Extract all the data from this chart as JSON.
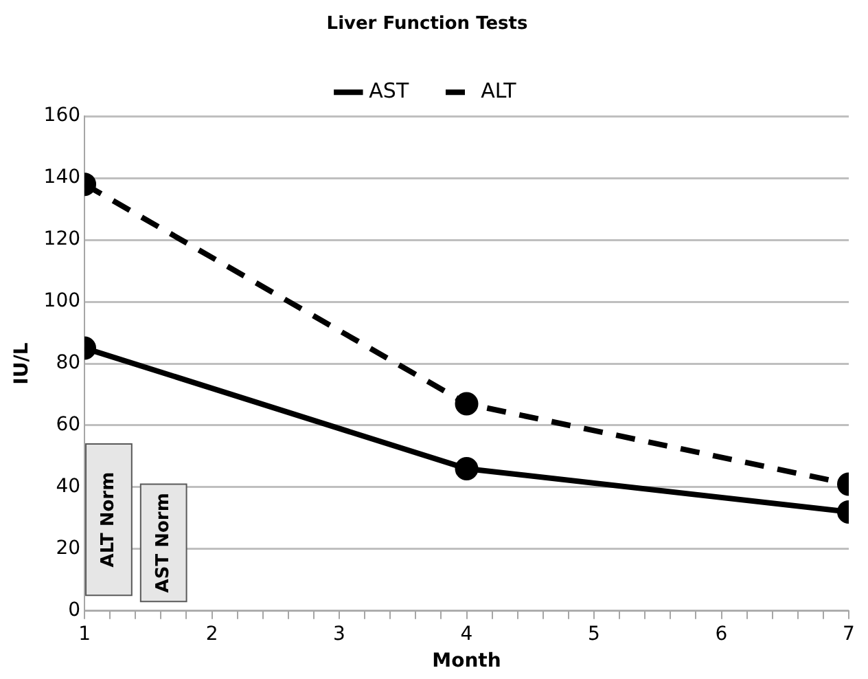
{
  "chart_data": {
    "type": "line",
    "title": "Liver Function Tests",
    "xlabel": "Month",
    "ylabel": "IU/L",
    "x": [
      1,
      4,
      7
    ],
    "series": [
      {
        "name": "AST",
        "color": "#000000",
        "values": [
          85,
          46,
          32
        ],
        "line_style": "solid"
      },
      {
        "name": "ALT",
        "color": "#000000",
        "values": [
          138,
          67,
          41
        ],
        "line_style": "dashed"
      }
    ],
    "xlim": [
      1,
      7
    ],
    "xticks": [
      1,
      {
        "value": 1.2,
        "label": null
      },
      {
        "value": 1.4,
        "label": null
      },
      {
        "value": 1.6,
        "label": null
      },
      {
        "value": 1.8,
        "label": null
      },
      2,
      {
        "value": 2.2,
        "label": null
      },
      {
        "value": 2.4,
        "label": null
      },
      {
        "value": 2.6,
        "label": null
      },
      {
        "value": 2.8,
        "label": null
      },
      3,
      {
        "value": 3.2,
        "label": null
      },
      {
        "value": 3.4,
        "label": null
      },
      {
        "value": 3.6,
        "label": null
      },
      {
        "value": 3.8,
        "label": null
      },
      4,
      {
        "value": 4.2,
        "label": null
      },
      {
        "value": 4.4,
        "label": null
      },
      {
        "value": 4.6,
        "label": null
      },
      {
        "value": 4.8,
        "label": null
      },
      5,
      {
        "value": 5.2,
        "label": null
      },
      {
        "value": 5.4,
        "label": null
      },
      {
        "value": 5.6,
        "label": null
      },
      {
        "value": 5.8,
        "label": null
      },
      6,
      {
        "value": 6.2,
        "label": null
      },
      {
        "value": 6.4,
        "label": null
      },
      {
        "value": 6.6,
        "label": null
      },
      {
        "value": 6.8,
        "label": null
      },
      7
    ],
    "ylim": [
      0,
      160
    ],
    "yticks": [
      0,
      20,
      40,
      60,
      80,
      100,
      120,
      140,
      160
    ],
    "bands": [
      {
        "axis": "y",
        "from": 5,
        "to": 54,
        "label": "ALT Norm",
        "color": "#e6e6e6"
      },
      {
        "axis": "y",
        "from": 3,
        "to": 41,
        "label": "AST Norm",
        "color": "#e6e6e6"
      }
    ],
    "grid": "y",
    "legend": "top",
    "marker": "circle"
  }
}
